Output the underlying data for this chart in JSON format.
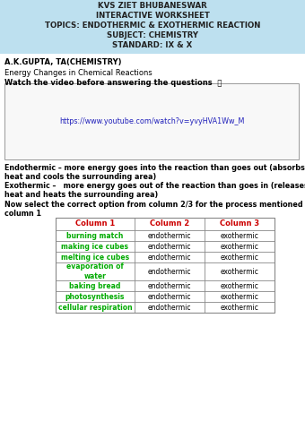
{
  "header_lines": [
    "KVS ZIET BHUBANESWAR",
    "INTERACTIVE WORKSHEET",
    "TOPICS: ENDOTHERMIC & EXOTHERMIC REACTION",
    "SUBJECT: CHEMISTRY",
    "STANDARD: IX & X"
  ],
  "header_bg": "#bde0ef",
  "author": "A.K.GUPTA, TA(CHEMISTRY)",
  "section_title": "Energy Changes in Chemical Reactions",
  "watch_text": "Watch the video before answering the questions  ⓘ",
  "youtube_link": "https://www.youtube.com/watch?v=yvyHVA1Ww_M",
  "endo_text1": "Endothermic – more energy goes into the reaction than goes out (absorbs",
  "endo_text2": "heat and cools the surrounding area)",
  "exo_text1": "Exothermic –   more energy goes out of the reaction than goes in (releases",
  "exo_text2": "heat and heats the surrounding area)",
  "select_text1": "Now select the correct option from column 2/3 for the process mentioned in",
  "select_text2": "column 1",
  "table_headers": [
    "Column 1",
    "Column 2",
    "Column 3"
  ],
  "table_col1": [
    "burning match",
    "making ice cubes",
    "melting ice cubes",
    "evaporation of\nwater",
    "baking bread",
    "photosynthesis",
    "cellular respiration"
  ],
  "table_col2": [
    "endothermic",
    "endothermic",
    "endothermic",
    "endothermic",
    "endothermic",
    "endothermic",
    "endothermic"
  ],
  "table_col3": [
    "exothermic",
    "exothermic",
    "exothermic",
    "exothermic",
    "exothermic",
    "exothermic",
    "exothermic"
  ],
  "header_color": "#cc0000",
  "col1_color": "#00aa00",
  "col23_color": "#000000",
  "bg_color": "#ffffff"
}
